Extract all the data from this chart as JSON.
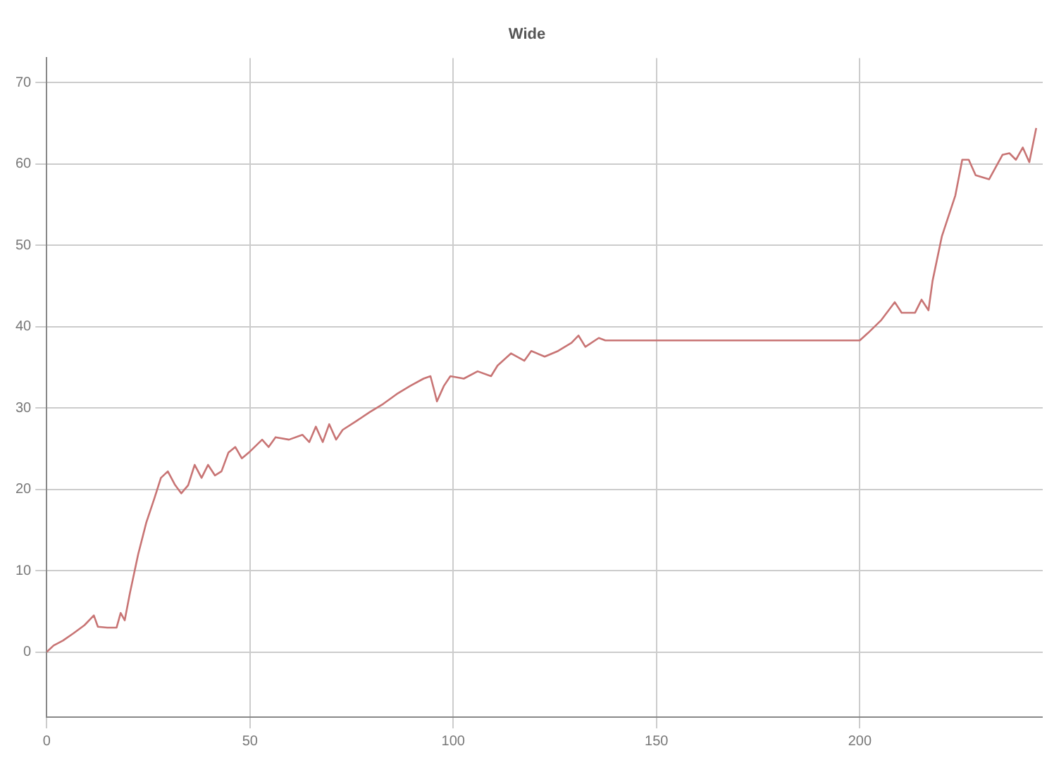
{
  "chart_data": {
    "type": "line",
    "title": "Wide",
    "x": [
      0,
      1.7,
      4.0,
      6.6,
      9.3,
      11.6,
      12.6,
      14.9,
      17.2,
      18.2,
      19.2,
      20.5,
      22.5,
      24.5,
      26.5,
      28.1,
      29.8,
      31.5,
      33.1,
      34.8,
      36.4,
      38.1,
      39.7,
      41.4,
      43.0,
      44.7,
      46.4,
      48.0,
      49.7,
      53.0,
      54.6,
      56.3,
      59.6,
      62.9,
      64.6,
      66.2,
      67.9,
      69.5,
      71.2,
      72.8,
      76.2,
      79.5,
      82.8,
      86.1,
      89.4,
      92.7,
      94.4,
      95.4,
      96.0,
      97.7,
      99.3,
      102.6,
      106.0,
      109.3,
      110.9,
      114.2,
      117.5,
      119.2,
      122.5,
      125.8,
      129.1,
      130.8,
      132.5,
      135.8,
      137.4,
      200.0,
      202.0,
      205.3,
      208.6,
      210.3,
      213.6,
      215.2,
      216.9,
      217.9,
      220.2,
      223.5,
      225.2,
      226.8,
      228.5,
      231.8,
      235.1,
      236.8,
      238.4,
      240.1,
      241.7,
      243.4
    ],
    "series": [
      {
        "color": "#c87474",
        "values": [
          0,
          0.8,
          1.4,
          2.3,
          3.3,
          4.5,
          3.1,
          3.0,
          3.0,
          4.8,
          3.9,
          7.3,
          12.0,
          15.9,
          18.9,
          21.4,
          22.2,
          20.6,
          19.5,
          20.5,
          23.0,
          21.4,
          23.0,
          21.7,
          22.2,
          24.5,
          25.2,
          23.8,
          24.5,
          26.1,
          25.2,
          26.4,
          26.1,
          26.7,
          25.8,
          27.7,
          25.8,
          28.0,
          26.1,
          27.3,
          28.4,
          29.5,
          30.5,
          31.7,
          32.7,
          33.6,
          33.9,
          32.0,
          30.8,
          32.7,
          33.9,
          33.6,
          34.5,
          33.9,
          35.2,
          36.7,
          35.8,
          37.0,
          36.3,
          37.0,
          38.0,
          38.9,
          37.5,
          38.6,
          38.3,
          38.3,
          39.2,
          40.8,
          43.0,
          41.7,
          41.7,
          43.3,
          42.0,
          45.6,
          51.1,
          56.1,
          60.5,
          60.5,
          58.6,
          58.1,
          61.1,
          61.3,
          60.5,
          62.0,
          60.2,
          64.4
        ]
      }
    ],
    "xlim": [
      0,
      245
    ],
    "xticks": [
      0,
      50,
      100,
      150,
      200
    ],
    "ylim": [
      -8,
      73
    ],
    "yticks": [
      0,
      10,
      20,
      30,
      40,
      50,
      60,
      70
    ],
    "grid": true,
    "marker": "none",
    "line_style": "solid"
  }
}
